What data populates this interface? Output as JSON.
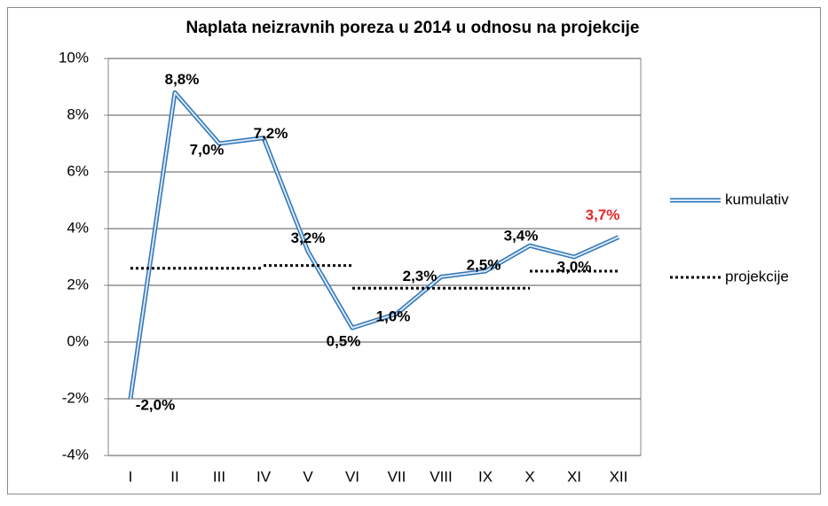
{
  "chart_data": {
    "type": "line",
    "title": "Naplata neizravnih poreza u 2014 u odnosu na projekcije",
    "categories": [
      "I",
      "II",
      "III",
      "IV",
      "V",
      "VI",
      "VII",
      "VIII",
      "IX",
      "X",
      "XI",
      "XII"
    ],
    "series": [
      {
        "name": "kumulativ",
        "color": "#2e75b6",
        "values": [
          -2.0,
          8.8,
          7.0,
          7.2,
          3.2,
          0.5,
          1.0,
          2.3,
          2.5,
          3.4,
          3.0,
          3.7
        ],
        "value_labels": [
          "-2,0%",
          "8,8%",
          "7,0%",
          "7,2%",
          "3,2%",
          "0,5%",
          "1,0%",
          "2,3%",
          "2,5%",
          "3,4%",
          "3,0%",
          "3,7%"
        ],
        "value_label_colors": [
          "#000",
          "#000",
          "#000",
          "#000",
          "#000",
          "#000",
          "#000",
          "#000",
          "#000",
          "#000",
          "#000",
          "#e8262a"
        ]
      },
      {
        "name": "projekcije",
        "color": "#000000",
        "dash": true,
        "segments": [
          {
            "start": "I",
            "end": "IV",
            "value": 2.6
          },
          {
            "start": "IV",
            "end": "VI",
            "value": 2.7
          },
          {
            "start": "VI",
            "end": "X",
            "value": 1.9
          },
          {
            "start": "X",
            "end": "XII",
            "value": 2.5
          }
        ]
      }
    ],
    "ylim": [
      -4,
      10
    ],
    "yticks": [
      {
        "value": -4,
        "label": "-4%"
      },
      {
        "value": -2,
        "label": "-2%"
      },
      {
        "value": 0,
        "label": "0%"
      },
      {
        "value": 2,
        "label": "2%"
      },
      {
        "value": 4,
        "label": "4%"
      },
      {
        "value": 6,
        "label": "6%"
      },
      {
        "value": 8,
        "label": "8%"
      },
      {
        "value": 10,
        "label": "10%"
      }
    ],
    "grid": true,
    "legend": "right"
  }
}
